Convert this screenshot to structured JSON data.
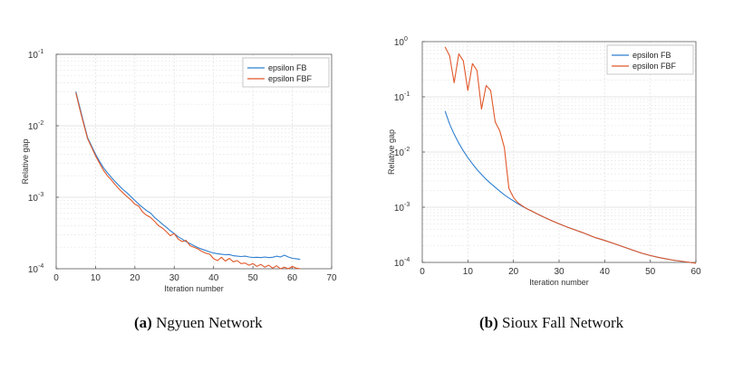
{
  "captions": [
    {
      "label": "(a)",
      "text": "Ngyuen Network"
    },
    {
      "label": "(b)",
      "text": "Sioux Fall Network"
    }
  ],
  "colors": {
    "fb": "#2f7fd0",
    "fbf": "#e1582a"
  },
  "chart_data": [
    {
      "type": "line",
      "title": "",
      "xlabel": "Iteration number",
      "ylabel": "Relative gap",
      "xlim": [
        0,
        70
      ],
      "ylim": [
        0.0001,
        0.1
      ],
      "yscale": "log",
      "grid": true,
      "legend_position": "top-right",
      "xticks": [
        "0",
        "10",
        "20",
        "30",
        "40",
        "50",
        "60",
        "70"
      ],
      "yticks": [
        {
          "base": "10",
          "exp": "-4"
        },
        {
          "base": "10",
          "exp": "-3"
        },
        {
          "base": "10",
          "exp": "-2"
        },
        {
          "base": "10",
          "exp": "-1"
        }
      ],
      "series": [
        {
          "name": "epsilon FB",
          "color": "#2f7fd0",
          "x": [
            5,
            6,
            7,
            8,
            9,
            10,
            11,
            12,
            13,
            14,
            15,
            16,
            17,
            18,
            19,
            20,
            21,
            22,
            23,
            24,
            25,
            26,
            27,
            28,
            29,
            30,
            31,
            32,
            33,
            34,
            35,
            36,
            37,
            38,
            39,
            40,
            41,
            42,
            43,
            44,
            45,
            46,
            47,
            48,
            49,
            50,
            51,
            52,
            53,
            54,
            55,
            56,
            57,
            58,
            59,
            60,
            61,
            62
          ],
          "y": [
            0.03,
            0.018,
            0.011,
            0.0068,
            0.0052,
            0.004,
            0.0032,
            0.0026,
            0.0022,
            0.0019,
            0.00165,
            0.00145,
            0.00128,
            0.00115,
            0.00102,
            0.0009,
            0.0008,
            0.00072,
            0.00065,
            0.0006,
            0.00052,
            0.00047,
            0.00042,
            0.00038,
            0.00034,
            0.00031,
            0.00028,
            0.00026,
            0.00024,
            0.000225,
            0.00021,
            0.000198,
            0.000188,
            0.00018,
            0.000172,
            0.000166,
            0.000162,
            0.00016,
            0.000157,
            0.000158,
            0.000152,
            0.00015,
            0.000148,
            0.00015,
            0.000146,
            0.000144,
            0.000145,
            0.000143,
            0.000146,
            0.000143,
            0.000145,
            0.00015,
            0.000146,
            0.000155,
            0.000146,
            0.00014,
            0.000138,
            0.000135
          ]
        },
        {
          "name": "epsilon FBF",
          "color": "#e1582a",
          "x": [
            5,
            6,
            7,
            8,
            9,
            10,
            11,
            12,
            13,
            14,
            15,
            16,
            17,
            18,
            19,
            20,
            21,
            22,
            23,
            24,
            25,
            26,
            27,
            28,
            29,
            30,
            31,
            32,
            33,
            34,
            35,
            36,
            37,
            38,
            39,
            40,
            41,
            42,
            43,
            44,
            45,
            46,
            47,
            48,
            49,
            50,
            51,
            52,
            53,
            54,
            55,
            56,
            57,
            58,
            59,
            60,
            61,
            62
          ],
          "y": [
            0.029,
            0.017,
            0.0105,
            0.0066,
            0.005,
            0.0038,
            0.003,
            0.0024,
            0.002,
            0.00175,
            0.0015,
            0.0013,
            0.00115,
            0.00102,
            0.00092,
            0.0008,
            0.00075,
            0.00062,
            0.00056,
            0.00052,
            0.00046,
            0.0004,
            0.00037,
            0.00033,
            0.00029,
            0.00031,
            0.00026,
            0.00024,
            0.00025,
            0.00021,
            0.0002,
            0.00019,
            0.000175,
            0.000165,
            0.00016,
            0.000138,
            0.00013,
            0.000145,
            0.000128,
            0.00014,
            0.000125,
            0.00013,
            0.000118,
            0.00012,
            0.000112,
            0.000118,
            0.000108,
            0.000115,
            0.000105,
            0.000112,
            0.000102,
            0.00011,
            0.0001,
            0.000105,
            0.0001,
            0.000108,
            0.000102,
            0.0001
          ]
        }
      ]
    },
    {
      "type": "line",
      "title": "",
      "xlabel": "Iteration number",
      "ylabel": "Relative gap",
      "xlim": [
        0,
        60
      ],
      "ylim": [
        0.0001,
        1
      ],
      "yscale": "log",
      "grid": true,
      "legend_position": "top-right",
      "xticks": [
        "0",
        "10",
        "20",
        "30",
        "40",
        "50",
        "60"
      ],
      "yticks": [
        {
          "base": "10",
          "exp": "-4"
        },
        {
          "base": "10",
          "exp": "-3"
        },
        {
          "base": "10",
          "exp": "-2"
        },
        {
          "base": "10",
          "exp": "-1"
        },
        {
          "base": "10",
          "exp": "0"
        }
      ],
      "series": [
        {
          "name": "epsilon FB",
          "color": "#2f7fd0",
          "x": [
            5,
            6,
            7,
            8,
            9,
            10,
            11,
            12,
            13,
            14,
            15,
            16,
            17,
            18,
            19,
            20,
            21,
            22,
            23,
            24,
            25,
            26,
            28,
            30,
            32,
            35,
            38,
            40,
            42,
            45,
            48,
            50,
            52,
            55,
            58,
            60
          ],
          "y": [
            0.055,
            0.032,
            0.021,
            0.0145,
            0.0105,
            0.0079,
            0.0061,
            0.0048,
            0.0039,
            0.0032,
            0.0027,
            0.0023,
            0.00195,
            0.00168,
            0.00147,
            0.0013,
            0.00115,
            0.00103,
            0.00093,
            0.00085,
            0.00077,
            0.0007,
            0.00059,
            0.0005,
            0.00043,
            0.00035,
            0.00028,
            0.00025,
            0.00022,
            0.00018,
            0.000148,
            0.000133,
            0.000122,
            0.00011,
            0.000102,
            9.7e-05
          ]
        },
        {
          "name": "epsilon FBF",
          "color": "#e1582a",
          "x": [
            5,
            6,
            7,
            8,
            9,
            10,
            11,
            12,
            13,
            14,
            15,
            16,
            17,
            18,
            19,
            20,
            21,
            22,
            23,
            24,
            25,
            26,
            28,
            30,
            32,
            35,
            38,
            40,
            42,
            45,
            48,
            50,
            52,
            55,
            58,
            60
          ],
          "y": [
            0.8,
            0.55,
            0.18,
            0.6,
            0.45,
            0.13,
            0.4,
            0.3,
            0.06,
            0.16,
            0.13,
            0.035,
            0.024,
            0.012,
            0.0022,
            0.0015,
            0.0012,
            0.00105,
            0.00093,
            0.00085,
            0.00077,
            0.0007,
            0.00059,
            0.0005,
            0.00043,
            0.00035,
            0.00028,
            0.00025,
            0.00022,
            0.00018,
            0.000148,
            0.000133,
            0.000122,
            0.00011,
            0.000102,
            9.7e-05
          ]
        }
      ]
    }
  ]
}
